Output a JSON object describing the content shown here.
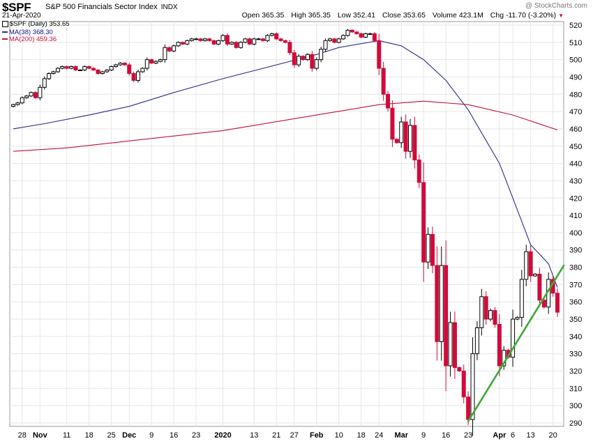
{
  "header": {
    "symbol": "$SPF",
    "name": "S&P 500 Financials Sector Index",
    "exchange": "INDX",
    "date": "21-Apr-2020",
    "watermark": "@ StockCharts.com",
    "open_label": "Open",
    "open": "365.35",
    "high_label": "High",
    "high": "365.35",
    "low_label": "Low",
    "low": "352.41",
    "close_label": "Close",
    "close": "353.65",
    "volume_label": "Volume",
    "volume": "423.1M",
    "chg_label": "Chg",
    "chg": "-11.70 (-3.20%)",
    "chg_arrow": "▼"
  },
  "legend": {
    "price": "$SPF (Daily) 353.65",
    "ma38": "MA(38) 368.30",
    "ma200": "MA(200) 459.36"
  },
  "colors": {
    "up": "#000000",
    "down": "#d10a3a",
    "ma38": "#2b2b8c",
    "ma200": "#c0103a",
    "trendline": "#3aaa35",
    "grid": "#e6e6e6"
  },
  "chart_data": {
    "type": "candlestick",
    "ylim": [
      288,
      522
    ],
    "y_ticks": [
      290,
      300,
      310,
      320,
      330,
      340,
      350,
      360,
      370,
      380,
      390,
      400,
      410,
      420,
      430,
      440,
      450,
      460,
      470,
      480,
      490,
      500,
      510,
      520
    ],
    "x_ticks": [
      {
        "label": "28",
        "date": "2019-10-28"
      },
      {
        "label": "Nov",
        "date": "2019-11-01"
      },
      {
        "label": "11",
        "date": "2019-11-11"
      },
      {
        "label": "18",
        "date": "2019-11-18"
      },
      {
        "label": "25",
        "date": "2019-11-25"
      },
      {
        "label": "Dec",
        "date": "2019-12-02"
      },
      {
        "label": "9",
        "date": "2019-12-09"
      },
      {
        "label": "16",
        "date": "2019-12-16"
      },
      {
        "label": "23",
        "date": "2019-12-23"
      },
      {
        "label": "2020",
        "date": "2020-01-02"
      },
      {
        "label": "13",
        "date": "2020-01-13"
      },
      {
        "label": "21",
        "date": "2020-01-21"
      },
      {
        "label": "27",
        "date": "2020-01-27"
      },
      {
        "label": "Feb",
        "date": "2020-02-03"
      },
      {
        "label": "10",
        "date": "2020-02-10"
      },
      {
        "label": "18",
        "date": "2020-02-18"
      },
      {
        "label": "24",
        "date": "2020-02-24"
      },
      {
        "label": "Mar",
        "date": "2020-03-02"
      },
      {
        "label": "9",
        "date": "2020-03-09"
      },
      {
        "label": "16",
        "date": "2020-03-16"
      },
      {
        "label": "23",
        "date": "2020-03-23"
      },
      {
        "label": "Apr",
        "date": "2020-04-01"
      },
      {
        "label": "6",
        "date": "2020-04-06"
      },
      {
        "label": "13",
        "date": "2020-04-13"
      },
      {
        "label": "20",
        "date": "2020-04-20"
      }
    ],
    "trendline": {
      "start": {
        "date": "2020-03-23",
        "value": 291
      },
      "end": {
        "date": "2020-04-23",
        "value": 381
      }
    },
    "closes": [
      [
        "2019-10-24",
        474
      ],
      [
        "2019-10-25",
        475
      ],
      [
        "2019-10-28",
        478
      ],
      [
        "2019-10-29",
        479
      ],
      [
        "2019-10-30",
        481
      ],
      [
        "2019-10-31",
        478
      ],
      [
        "2019-11-01",
        484
      ],
      [
        "2019-11-04",
        489
      ],
      [
        "2019-11-05",
        492
      ],
      [
        "2019-11-06",
        493
      ],
      [
        "2019-11-07",
        495
      ],
      [
        "2019-11-08",
        496
      ],
      [
        "2019-11-11",
        495
      ],
      [
        "2019-11-12",
        496
      ],
      [
        "2019-11-13",
        494
      ],
      [
        "2019-11-14",
        494
      ],
      [
        "2019-11-15",
        496
      ],
      [
        "2019-11-18",
        495
      ],
      [
        "2019-11-19",
        494
      ],
      [
        "2019-11-20",
        492
      ],
      [
        "2019-11-21",
        493
      ],
      [
        "2019-11-22",
        494
      ],
      [
        "2019-11-25",
        496
      ],
      [
        "2019-11-26",
        497
      ],
      [
        "2019-11-27",
        498
      ],
      [
        "2019-11-29",
        497
      ],
      [
        "2019-12-02",
        492
      ],
      [
        "2019-12-03",
        488
      ],
      [
        "2019-12-04",
        493
      ],
      [
        "2019-12-05",
        495
      ],
      [
        "2019-12-06",
        500
      ],
      [
        "2019-12-09",
        498
      ],
      [
        "2019-12-10",
        499
      ],
      [
        "2019-12-11",
        500
      ],
      [
        "2019-12-12",
        507
      ],
      [
        "2019-12-13",
        505
      ],
      [
        "2019-12-16",
        508
      ],
      [
        "2019-12-17",
        510
      ],
      [
        "2019-12-18",
        509
      ],
      [
        "2019-12-19",
        511
      ],
      [
        "2019-12-20",
        512
      ],
      [
        "2019-12-23",
        512
      ],
      [
        "2019-12-24",
        511
      ],
      [
        "2019-12-26",
        512
      ],
      [
        "2019-12-27",
        511
      ],
      [
        "2019-12-30",
        509
      ],
      [
        "2019-12-31",
        511
      ],
      [
        "2020-01-02",
        514
      ],
      [
        "2020-01-03",
        509
      ],
      [
        "2020-01-06",
        510
      ],
      [
        "2020-01-07",
        507
      ],
      [
        "2020-01-08",
        510
      ],
      [
        "2020-01-09",
        512
      ],
      [
        "2020-01-10",
        509
      ],
      [
        "2020-01-13",
        512
      ],
      [
        "2020-01-14",
        512
      ],
      [
        "2020-01-15",
        511
      ],
      [
        "2020-01-16",
        514
      ],
      [
        "2020-01-17",
        515
      ],
      [
        "2020-01-21",
        512
      ],
      [
        "2020-01-22",
        511
      ],
      [
        "2020-01-23",
        510
      ],
      [
        "2020-01-24",
        504
      ],
      [
        "2020-01-27",
        497
      ],
      [
        "2020-01-28",
        502
      ],
      [
        "2020-01-29",
        500
      ],
      [
        "2020-01-30",
        503
      ],
      [
        "2020-01-31",
        495
      ],
      [
        "2020-02-03",
        500
      ],
      [
        "2020-02-04",
        506
      ],
      [
        "2020-02-05",
        511
      ],
      [
        "2020-02-06",
        512
      ],
      [
        "2020-02-07",
        510
      ],
      [
        "2020-02-10",
        512
      ],
      [
        "2020-02-11",
        514
      ],
      [
        "2020-02-12",
        517
      ],
      [
        "2020-02-13",
        516
      ],
      [
        "2020-02-14",
        515
      ],
      [
        "2020-02-18",
        513
      ],
      [
        "2020-02-19",
        515
      ],
      [
        "2020-02-20",
        515
      ],
      [
        "2020-02-21",
        511
      ],
      [
        "2020-02-24",
        495
      ],
      [
        "2020-02-25",
        480
      ],
      [
        "2020-02-26",
        472
      ],
      [
        "2020-02-27",
        454
      ],
      [
        "2020-02-28",
        452
      ],
      [
        "2020-03-02",
        464
      ],
      [
        "2020-03-03",
        447
      ],
      [
        "2020-03-04",
        462
      ],
      [
        "2020-03-05",
        442
      ],
      [
        "2020-03-06",
        429
      ],
      [
        "2020-03-09",
        383
      ],
      [
        "2020-03-10",
        399
      ],
      [
        "2020-03-11",
        381
      ],
      [
        "2020-03-12",
        337
      ],
      [
        "2020-03-13",
        381
      ],
      [
        "2020-03-16",
        323
      ],
      [
        "2020-03-17",
        348
      ],
      [
        "2020-03-18",
        322
      ],
      [
        "2020-03-19",
        320
      ],
      [
        "2020-03-20",
        305
      ],
      [
        "2020-03-23",
        292
      ],
      [
        "2020-03-24",
        330
      ],
      [
        "2020-03-25",
        345
      ],
      [
        "2020-03-26",
        363
      ],
      [
        "2020-03-27",
        350
      ],
      [
        "2020-03-30",
        355
      ],
      [
        "2020-03-31",
        347
      ],
      [
        "2020-04-01",
        323
      ],
      [
        "2020-04-02",
        332
      ],
      [
        "2020-04-03",
        328
      ],
      [
        "2020-04-06",
        350
      ],
      [
        "2020-04-07",
        351
      ],
      [
        "2020-04-08",
        373
      ],
      [
        "2020-04-09",
        389
      ],
      [
        "2020-04-13",
        375
      ],
      [
        "2020-04-14",
        376
      ],
      [
        "2020-04-15",
        361
      ],
      [
        "2020-04-16",
        357
      ],
      [
        "2020-04-17",
        373
      ],
      [
        "2020-04-20",
        365
      ],
      [
        "2020-04-21",
        354
      ]
    ],
    "ma38": [
      [
        "2019-10-24",
        460
      ],
      [
        "2019-11-04",
        463
      ],
      [
        "2019-11-18",
        468
      ],
      [
        "2019-12-02",
        473
      ],
      [
        "2019-12-16",
        481
      ],
      [
        "2020-01-02",
        489
      ],
      [
        "2020-01-21",
        497
      ],
      [
        "2020-02-03",
        503
      ],
      [
        "2020-02-10",
        507
      ],
      [
        "2020-02-24",
        511
      ],
      [
        "2020-03-02",
        508
      ],
      [
        "2020-03-09",
        500
      ],
      [
        "2020-03-16",
        488
      ],
      [
        "2020-03-23",
        471
      ],
      [
        "2020-04-01",
        440
      ],
      [
        "2020-04-06",
        420
      ],
      [
        "2020-04-13",
        393
      ],
      [
        "2020-04-17",
        382
      ],
      [
        "2020-04-21",
        368.3
      ]
    ],
    "ma200": [
      [
        "2019-10-24",
        447
      ],
      [
        "2019-11-11",
        449
      ],
      [
        "2019-12-02",
        453
      ],
      [
        "2020-01-02",
        459
      ],
      [
        "2020-02-03",
        468
      ],
      [
        "2020-02-24",
        474
      ],
      [
        "2020-03-09",
        476
      ],
      [
        "2020-03-23",
        474
      ],
      [
        "2020-04-06",
        468
      ],
      [
        "2020-04-21",
        459.36
      ]
    ]
  }
}
